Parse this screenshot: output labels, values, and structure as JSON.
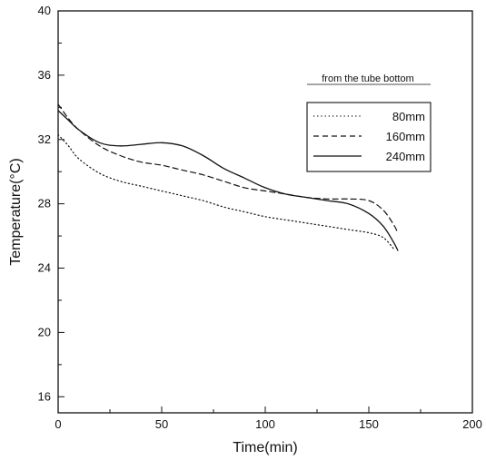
{
  "chart_data": {
    "type": "line",
    "title": "",
    "xlabel": "Time(min)",
    "ylabel": "Temperature(°C)",
    "xlim": [
      0,
      200
    ],
    "ylim": [
      15,
      40
    ],
    "xticks": [
      0,
      50,
      100,
      150,
      200
    ],
    "yticks": [
      16,
      20,
      24,
      28,
      32,
      36,
      40
    ],
    "grid": false,
    "legend": {
      "placement": "top-right",
      "title": "from the tube bottom",
      "entries": [
        "80mm",
        "160mm",
        "240mm"
      ]
    },
    "series": [
      {
        "name": "80mm",
        "line_style": "dotted",
        "points": [
          [
            0,
            32.3
          ],
          [
            5,
            31.6
          ],
          [
            10,
            30.8
          ],
          [
            20,
            29.9
          ],
          [
            30,
            29.4
          ],
          [
            40,
            29.1
          ],
          [
            50,
            28.8
          ],
          [
            60,
            28.5
          ],
          [
            70,
            28.2
          ],
          [
            80,
            27.8
          ],
          [
            90,
            27.5
          ],
          [
            100,
            27.2
          ],
          [
            110,
            27.0
          ],
          [
            120,
            26.8
          ],
          [
            130,
            26.6
          ],
          [
            140,
            26.4
          ],
          [
            150,
            26.2
          ],
          [
            157,
            25.9
          ],
          [
            162,
            25.2
          ]
        ]
      },
      {
        "name": "160mm",
        "line_style": "dashed",
        "points": [
          [
            0,
            34.2
          ],
          [
            5,
            33.3
          ],
          [
            10,
            32.6
          ],
          [
            20,
            31.6
          ],
          [
            30,
            31.0
          ],
          [
            40,
            30.6
          ],
          [
            50,
            30.4
          ],
          [
            60,
            30.1
          ],
          [
            70,
            29.8
          ],
          [
            80,
            29.4
          ],
          [
            90,
            29.0
          ],
          [
            100,
            28.8
          ],
          [
            110,
            28.6
          ],
          [
            120,
            28.4
          ],
          [
            130,
            28.3
          ],
          [
            140,
            28.3
          ],
          [
            150,
            28.2
          ],
          [
            157,
            27.6
          ],
          [
            162,
            26.7
          ],
          [
            164,
            26.2
          ]
        ]
      },
      {
        "name": "240mm",
        "line_style": "solid",
        "points": [
          [
            0,
            33.8
          ],
          [
            5,
            33.2
          ],
          [
            10,
            32.6
          ],
          [
            20,
            31.8
          ],
          [
            30,
            31.6
          ],
          [
            40,
            31.7
          ],
          [
            50,
            31.8
          ],
          [
            60,
            31.6
          ],
          [
            70,
            31.0
          ],
          [
            80,
            30.2
          ],
          [
            90,
            29.6
          ],
          [
            100,
            29.0
          ],
          [
            110,
            28.6
          ],
          [
            120,
            28.4
          ],
          [
            130,
            28.2
          ],
          [
            140,
            28.0
          ],
          [
            150,
            27.4
          ],
          [
            157,
            26.6
          ],
          [
            162,
            25.6
          ],
          [
            164,
            25.1
          ]
        ]
      }
    ]
  }
}
